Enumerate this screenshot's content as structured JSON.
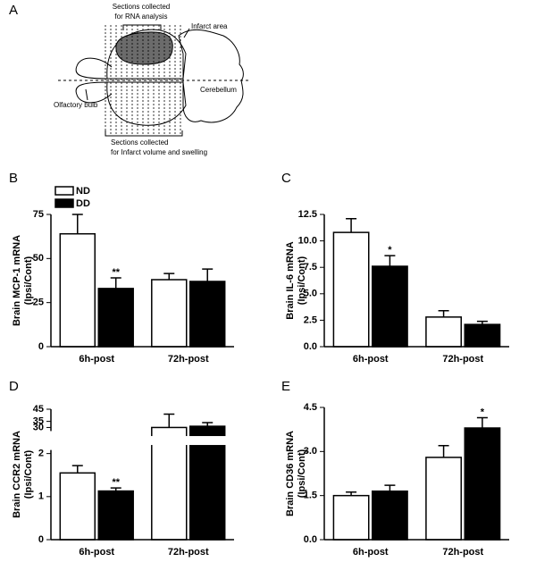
{
  "diagram": {
    "label": "A",
    "rna_sections": [
      "Sections collected",
      "for RNA analysis"
    ],
    "infarct": "Infarct area",
    "cerebellum": "Cerebellum",
    "olfactory": "Olfactory bulb",
    "swelling_sections": [
      "Sections collected",
      "for Infarct volume and swelling"
    ]
  },
  "chart_data": [
    {
      "type": "bar",
      "panel": "B",
      "ylabel": [
        "Brain MCP-1 mRNA",
        "(Ipsi/Cont)"
      ],
      "categories": [
        "6h-post",
        "72h-post"
      ],
      "series": [
        {
          "name": "ND",
          "color": "#ffffff",
          "values": [
            64,
            38
          ],
          "errors": [
            11,
            3.5
          ]
        },
        {
          "name": "DD",
          "color": "#000000",
          "values": [
            33,
            37
          ],
          "errors": [
            6,
            7
          ],
          "significance": [
            "**",
            null
          ]
        }
      ],
      "ylim": [
        0,
        75
      ],
      "yticks": [
        0,
        25,
        50,
        75
      ],
      "legend": "upper left"
    },
    {
      "type": "bar",
      "panel": "C",
      "ylabel": [
        "Brain IL-6 mRNA",
        "(Ipsi/Cont)"
      ],
      "categories": [
        "6h-post",
        "72h-post"
      ],
      "series": [
        {
          "color": "#ffffff",
          "values": [
            10.8,
            2.8
          ],
          "errors": [
            1.3,
            0.6
          ]
        },
        {
          "color": "#000000",
          "values": [
            7.6,
            2.1
          ],
          "errors": [
            1.0,
            0.3
          ],
          "significance": [
            "*",
            null
          ]
        }
      ],
      "ylim": [
        0,
        12.5
      ],
      "yticks": [
        {
          "value": 0,
          "label": "0.0"
        },
        2.5,
        {
          "value": 5,
          "label": "5.0"
        },
        7.5,
        {
          "value": 10,
          "label": "10.0"
        },
        12.5
      ]
    },
    {
      "type": "bar",
      "panel": "D",
      "ylabel": [
        "Brain CCR2 mRNA",
        "(Ipsi/Cont)"
      ],
      "categories": [
        "6h-post",
        "72h-post"
      ],
      "series": [
        {
          "color": "#ffffff",
          "values": [
            1.55,
            30
          ],
          "errors": [
            0.17,
            11
          ]
        },
        {
          "color": "#000000",
          "values": [
            1.13,
            31
          ],
          "errors": [
            0.07,
            3
          ],
          "significance": [
            "**",
            null
          ]
        }
      ],
      "ylim": [
        0,
        45
      ],
      "ybreak": [
        2,
        30
      ],
      "yticks": [
        0,
        1,
        2,
        30,
        35,
        45
      ]
    },
    {
      "type": "bar",
      "panel": "E",
      "ylabel": [
        "Brain CD36 mRNA",
        "(Ipsi/Cont)"
      ],
      "categories": [
        "6h-post",
        "72h-post"
      ],
      "series": [
        {
          "color": "#ffffff",
          "values": [
            1.5,
            2.8
          ],
          "errors": [
            0.12,
            0.4
          ]
        },
        {
          "color": "#000000",
          "values": [
            1.65,
            3.8
          ],
          "errors": [
            0.2,
            0.35
          ],
          "significance": [
            null,
            "*"
          ]
        }
      ],
      "ylim": [
        0,
        4.5
      ],
      "yticks": [
        {
          "value": 0,
          "label": "0.0"
        },
        1.5,
        {
          "value": 3,
          "label": "3.0"
        },
        4.5
      ]
    }
  ]
}
